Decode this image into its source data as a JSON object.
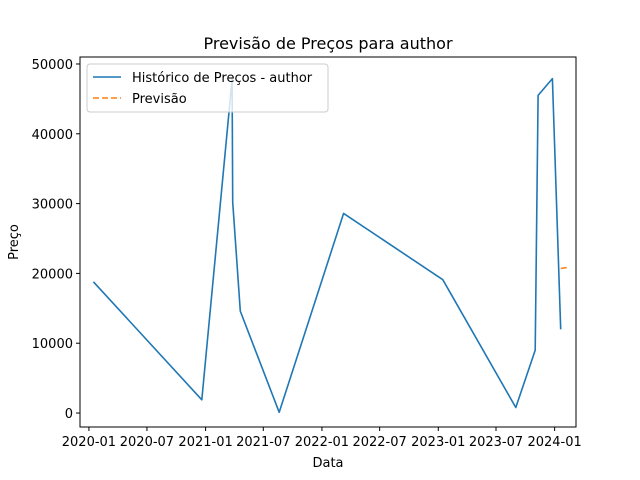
{
  "chart_data": {
    "type": "line",
    "title": "Previsão de Preços para author",
    "xlabel": "Data",
    "ylabel": "Preço",
    "legend_position": "top-left",
    "x_ticks": [
      "2020-01",
      "2020-07",
      "2021-01",
      "2021-07",
      "2022-01",
      "2022-07",
      "2023-01",
      "2023-07",
      "2024-01"
    ],
    "y_ticks": [
      "0",
      "10000",
      "20000",
      "30000",
      "40000",
      "50000"
    ],
    "ylim": [
      -2000,
      51000
    ],
    "series": [
      {
        "name": "Histórico de Preços - author",
        "color": "#1f77b4",
        "style": "solid",
        "points": [
          [
            "2020-01-15",
            18800
          ],
          [
            "2020-12-20",
            1900
          ],
          [
            "2021-03-25",
            47800
          ],
          [
            "2021-03-27",
            30200
          ],
          [
            "2021-04-20",
            14600
          ],
          [
            "2021-08-20",
            100
          ],
          [
            "2022-03-10",
            28600
          ],
          [
            "2023-01-15",
            19100
          ],
          [
            "2023-09-01",
            800
          ],
          [
            "2023-11-01",
            9000
          ],
          [
            "2023-11-10",
            45500
          ],
          [
            "2023-12-25",
            47900
          ],
          [
            "2024-01-20",
            12000
          ]
        ]
      },
      {
        "name": "Previsão",
        "color": "#ff7f0e",
        "style": "dashed",
        "points": [
          [
            "2024-01-20",
            20700
          ],
          [
            "2024-02-15",
            20900
          ]
        ]
      }
    ]
  }
}
